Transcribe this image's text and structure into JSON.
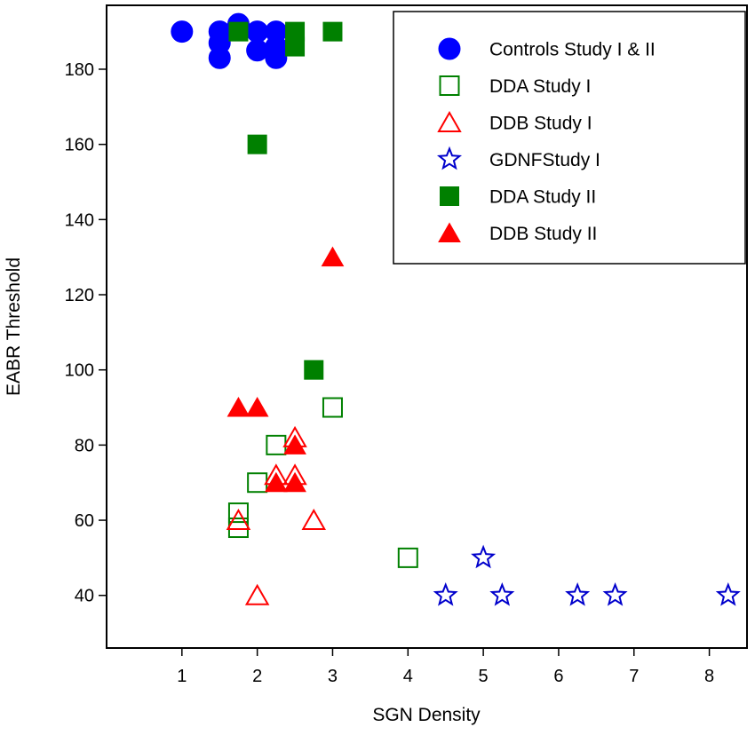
{
  "chart_data": {
    "type": "scatter",
    "xlabel": "SGN Density",
    "ylabel": "EABR Threshold",
    "xlim": [
      0,
      8.5
    ],
    "ylim": [
      26,
      197
    ],
    "xticks": [
      1,
      2,
      3,
      4,
      5,
      6,
      7,
      8
    ],
    "yticks": [
      40,
      60,
      80,
      100,
      120,
      140,
      160,
      180
    ],
    "legend_position": "top-right",
    "series": [
      {
        "name": "Controls Study I & II",
        "marker": "circle",
        "filled": true,
        "color": "#0000ff",
        "points": [
          [
            1.0,
            190
          ],
          [
            1.5,
            190
          ],
          [
            1.5,
            187
          ],
          [
            1.5,
            183
          ],
          [
            1.75,
            192
          ],
          [
            2.0,
            190
          ],
          [
            2.0,
            185
          ],
          [
            2.25,
            190
          ],
          [
            2.25,
            186
          ],
          [
            2.25,
            183
          ]
        ]
      },
      {
        "name": "DDA Study I",
        "marker": "square",
        "filled": false,
        "color": "#008000",
        "points": [
          [
            1.75,
            58
          ],
          [
            1.75,
            62
          ],
          [
            2.0,
            70
          ],
          [
            2.25,
            80
          ],
          [
            3.0,
            90
          ],
          [
            4.0,
            50
          ]
        ]
      },
      {
        "name": "DDB Study I",
        "marker": "triangle",
        "filled": false,
        "color": "#ff0000",
        "points": [
          [
            1.75,
            60
          ],
          [
            2.0,
            40
          ],
          [
            2.25,
            72
          ],
          [
            2.5,
            72
          ],
          [
            2.5,
            82
          ],
          [
            2.75,
            60
          ]
        ]
      },
      {
        "name": "GDNFStudy I",
        "marker": "star",
        "filled": false,
        "color": "#0000cc",
        "points": [
          [
            4.5,
            40
          ],
          [
            5.0,
            50
          ],
          [
            5.25,
            40
          ],
          [
            6.25,
            40
          ],
          [
            6.75,
            40
          ],
          [
            8.25,
            40
          ]
        ]
      },
      {
        "name": "DDA Study II",
        "marker": "square",
        "filled": true,
        "color": "#008000",
        "points": [
          [
            1.75,
            190
          ],
          [
            2.0,
            160
          ],
          [
            2.5,
            190
          ],
          [
            2.5,
            186
          ],
          [
            3.0,
            190
          ],
          [
            2.75,
            100
          ]
        ]
      },
      {
        "name": "DDB Study II",
        "marker": "triangle",
        "filled": true,
        "color": "#ff0000",
        "points": [
          [
            1.75,
            90
          ],
          [
            2.0,
            90
          ],
          [
            2.25,
            70
          ],
          [
            2.5,
            70
          ],
          [
            2.5,
            80
          ],
          [
            3.0,
            130
          ]
        ]
      }
    ]
  }
}
